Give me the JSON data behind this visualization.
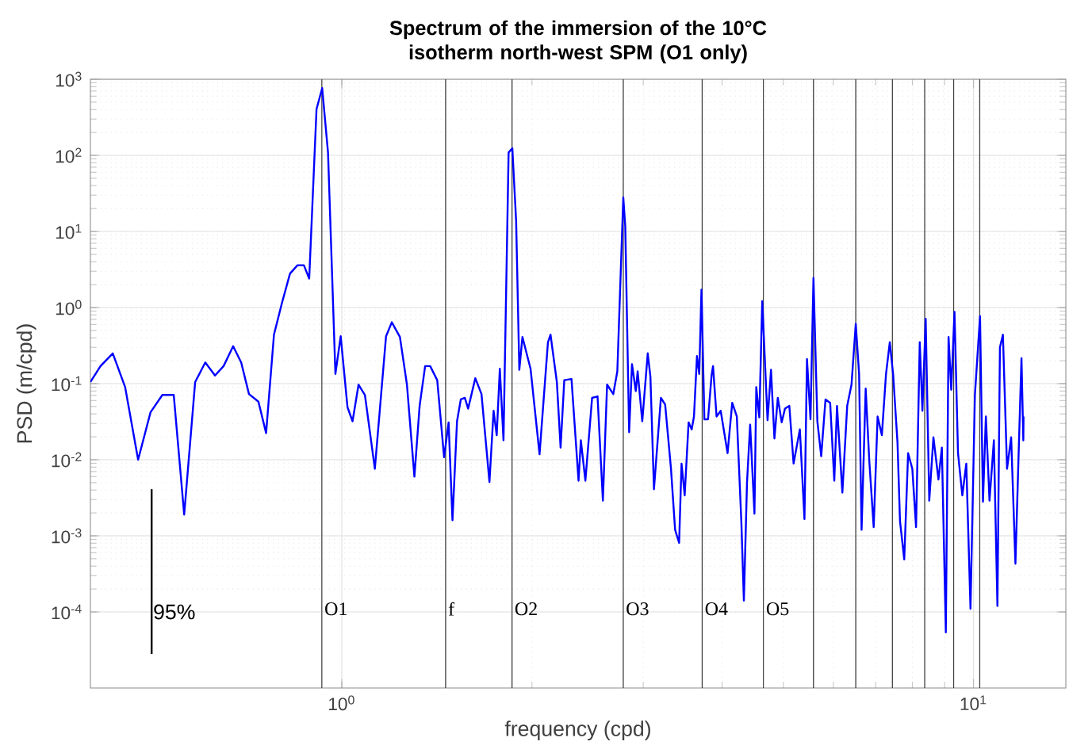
{
  "chart_data": {
    "type": "line",
    "title": "Spectrum of the immersion of the 10°C isotherm north-west SPM (O1 only)",
    "xlabel": "frequency (cpd)",
    "ylabel": "PSD (m/cpd)",
    "log": "xy",
    "grid": true,
    "xlim": [
      0.4,
      14
    ],
    "ylim": [
      1e-05,
      1000
    ],
    "xticks": [
      {
        "value": 1,
        "label": "10$^{0}$"
      },
      {
        "value": 10,
        "label": "10$^{1}$"
      }
    ],
    "yticks": [
      {
        "value": 0.0001,
        "label": "10$^{-4}$"
      },
      {
        "value": 0.001,
        "label": "10$^{-3}$"
      },
      {
        "value": 0.01,
        "label": "10$^{-2}$"
      },
      {
        "value": 0.1,
        "label": "10$^{-1}$"
      },
      {
        "value": 1,
        "label": "10$^{0}$"
      },
      {
        "value": 10,
        "label": "10$^{1}$"
      },
      {
        "value": 100,
        "label": "10$^{2}$"
      },
      {
        "value": 1000,
        "label": "10$^{3}$"
      }
    ],
    "series": [
      {
        "color": "#0000ff",
        "x": [
          0.4,
          0.415,
          0.434,
          0.454,
          0.476,
          0.498,
          0.52,
          0.542,
          0.563,
          0.586,
          0.608,
          0.63,
          0.65,
          0.673,
          0.693,
          0.713,
          0.738,
          0.759,
          0.781,
          0.804,
          0.828,
          0.851,
          0.871,
          0.888,
          0.912,
          0.931,
          0.951,
          0.977,
          0.996,
          1.021,
          1.04,
          1.063,
          1.088,
          1.128,
          1.175,
          1.2,
          1.236,
          1.268,
          1.303,
          1.328,
          1.355,
          1.38,
          1.416,
          1.452,
          1.476,
          1.497,
          1.522,
          1.543,
          1.566,
          1.585,
          1.627,
          1.664,
          1.713,
          1.739,
          1.759,
          1.779,
          1.803,
          1.837,
          1.862,
          1.888,
          1.91,
          1.932,
          1.99,
          2.056,
          2.12,
          2.14,
          2.19,
          2.22,
          2.25,
          2.31,
          2.37,
          2.39,
          2.43,
          2.49,
          2.54,
          2.59,
          2.63,
          2.69,
          2.73,
          2.79,
          2.81,
          2.85,
          2.88,
          2.92,
          2.94,
          2.99,
          3.05,
          3.08,
          3.12,
          3.2,
          3.25,
          3.32,
          3.37,
          3.42,
          3.45,
          3.49,
          3.54,
          3.58,
          3.61,
          3.65,
          3.68,
          3.71,
          3.75,
          3.8,
          3.85,
          3.87,
          3.92,
          3.98,
          4.08,
          4.15,
          4.22,
          4.29,
          4.33,
          4.38,
          4.43,
          4.5,
          4.53,
          4.58,
          4.63,
          4.72,
          4.78,
          4.84,
          4.9,
          4.97,
          5.03,
          5.11,
          5.19,
          5.31,
          5.4,
          5.45,
          5.52,
          5.58,
          5.66,
          5.74,
          5.83,
          5.93,
          6.02,
          6.08,
          6.2,
          6.31,
          6.41,
          6.51,
          6.59,
          6.65,
          6.75,
          6.84,
          6.95,
          7.05,
          7.16,
          7.27,
          7.37,
          7.46,
          7.58,
          7.65,
          7.77,
          7.88,
          8.0,
          8.11,
          8.22,
          8.3,
          8.4,
          8.51,
          8.64,
          8.8,
          8.91,
          9.04,
          9.13,
          9.22,
          9.33,
          9.45,
          9.6,
          9.74,
          9.89,
          10.05,
          10.24,
          10.35,
          10.46,
          10.6,
          10.77,
          10.91,
          11.01,
          11.13,
          11.3,
          11.47,
          11.65,
          11.8,
          11.91,
          11.99,
          12.0
        ],
        "values": [
          0.105,
          0.17,
          0.25,
          0.09,
          0.01,
          0.042,
          0.071,
          0.071,
          0.0019,
          0.105,
          0.19,
          0.128,
          0.17,
          0.31,
          0.19,
          0.073,
          0.058,
          0.0224,
          0.44,
          1.15,
          2.8,
          3.6,
          3.6,
          2.4,
          404,
          764,
          109,
          0.134,
          0.42,
          0.049,
          0.032,
          0.097,
          0.071,
          0.0076,
          0.42,
          0.64,
          0.41,
          0.097,
          0.006,
          0.051,
          0.17,
          0.17,
          0.111,
          0.0108,
          0.031,
          0.0016,
          0.032,
          0.062,
          0.065,
          0.047,
          0.118,
          0.073,
          0.0051,
          0.044,
          0.021,
          0.157,
          0.018,
          109,
          124,
          13.7,
          0.152,
          0.41,
          0.157,
          0.0118,
          0.35,
          0.44,
          0.105,
          0.0144,
          0.111,
          0.115,
          0.0053,
          0.018,
          0.0053,
          0.065,
          0.068,
          0.0029,
          0.097,
          0.073,
          0.145,
          28,
          11.7,
          0.023,
          0.18,
          0.08,
          0.145,
          0.032,
          0.25,
          0.124,
          0.0041,
          0.065,
          0.053,
          0.0076,
          0.0012,
          0.00081,
          0.0089,
          0.0034,
          0.031,
          0.025,
          0.037,
          0.23,
          0.134,
          1.72,
          0.034,
          0.034,
          0.13,
          0.17,
          0.037,
          0.044,
          0.0122,
          0.056,
          0.037,
          0.00155,
          0.000141,
          0.0051,
          0.029,
          0.00195,
          0.09,
          0.036,
          1.21,
          0.033,
          0.152,
          0.019,
          0.065,
          0.031,
          0.047,
          0.051,
          0.0089,
          0.025,
          0.00166,
          0.21,
          0.034,
          2.44,
          0.032,
          0.0111,
          0.062,
          0.056,
          0.0053,
          0.051,
          0.0037,
          0.051,
          0.097,
          0.61,
          0.134,
          0.0012,
          0.086,
          0.0096,
          0.0013,
          0.037,
          0.021,
          0.134,
          0.35,
          0.134,
          0.0168,
          0.00155,
          0.00049,
          0.0122,
          0.0076,
          0.0013,
          0.35,
          0.044,
          0.71,
          0.0029,
          0.0197,
          0.0055,
          0.0144,
          5.4e-05,
          0.41,
          0.083,
          0.88,
          0.0122,
          0.0034,
          0.0089,
          0.00011,
          0.071,
          0.77,
          0.0028,
          0.037,
          0.0029,
          0.018,
          0.00012,
          0.3,
          0.44,
          0.0076,
          0.0197,
          0.00043,
          0.0168,
          0.216,
          0.018,
          0.037
        ]
      },
      {
        "color": "#000000",
        "x": [
          0.5,
          0.5
        ],
        "values": [
          2.8e-05,
          0.0041
        ]
      }
    ],
    "ref_lines": [
      {
        "axis": "x",
        "value": 0.93,
        "label": "O1",
        "color": "#404040"
      },
      {
        "axis": "x",
        "value": 1.46,
        "label": "f",
        "color": "#404040"
      },
      {
        "axis": "x",
        "value": 1.86,
        "label": "O2",
        "color": "#404040"
      },
      {
        "axis": "x",
        "value": 2.79,
        "label": "O3",
        "color": "#404040"
      },
      {
        "axis": "x",
        "value": 3.72,
        "label": "O4",
        "color": "#404040"
      },
      {
        "axis": "x",
        "value": 4.65,
        "label": "O5",
        "color": "#404040"
      },
      {
        "axis": "x",
        "value": 5.58,
        "color": "#404040"
      },
      {
        "axis": "x",
        "value": 6.51,
        "color": "#404040"
      },
      {
        "axis": "x",
        "value": 7.44,
        "color": "#404040"
      },
      {
        "axis": "x",
        "value": 8.37,
        "color": "#404040"
      },
      {
        "axis": "x",
        "value": 9.3,
        "color": "#404040"
      },
      {
        "axis": "x",
        "value": 10.23,
        "color": "#404040"
      }
    ],
    "annotations": [
      {
        "text": "95%",
        "x": 0.5,
        "y": 0.0001
      }
    ]
  }
}
